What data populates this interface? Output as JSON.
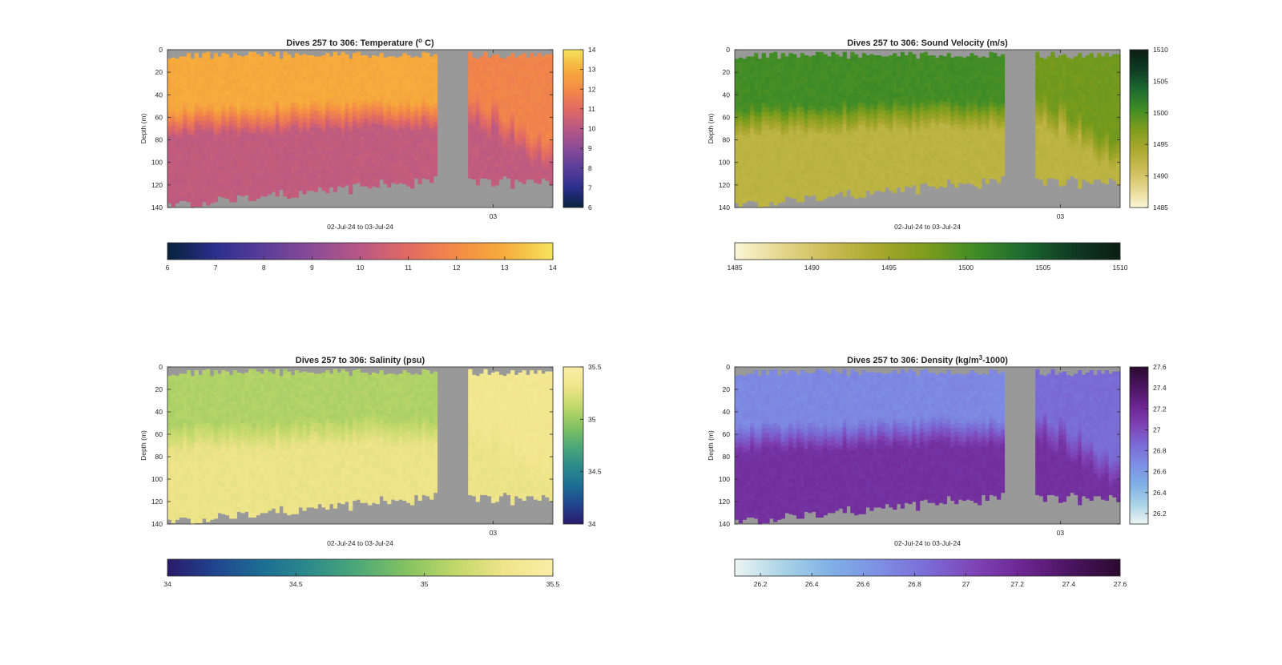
{
  "chart_data": [
    {
      "type": "heatmap",
      "id": "temperature",
      "title": "Dives 257 to 306: Temperature (",
      "title_sup": "o",
      "title_tail": " C)",
      "xlabel": "02-Jul-24 to 03-Jul-24",
      "ylabel": "Depth (m)",
      "x_tick_labels": [
        "03"
      ],
      "y_ticks": [
        0,
        20,
        40,
        60,
        80,
        100,
        120,
        140
      ],
      "ylim": [
        0,
        140
      ],
      "clim": [
        6,
        14
      ],
      "side_colorbar_ticks": [
        6,
        7,
        8,
        9,
        10,
        11,
        12,
        13,
        14
      ],
      "bottom_colorbar_ticks": [
        6,
        7,
        8,
        9,
        10,
        11,
        12,
        13,
        14
      ],
      "colormap": [
        "#07223d",
        "#2b2f8c",
        "#5a3d99",
        "#8a4b97",
        "#b95885",
        "#e26a62",
        "#f38b46",
        "#f7ad3c",
        "#f5e35c"
      ],
      "profile": {
        "surface": 12.9,
        "mixed_layer_depth_m": [
          44,
          30
        ],
        "deep": 10.2,
        "second_segment_surface": 11.8
      },
      "max_depth_m": [
        140,
        120
      ],
      "gap_columns": [
        70,
        77
      ]
    },
    {
      "type": "heatmap",
      "id": "sound_velocity",
      "title": "Dives 257 to 306: Sound Velocity (m/s)",
      "xlabel": "02-Jul-24 to 03-Jul-24",
      "ylabel": "Depth (m)",
      "x_tick_labels": [
        "03"
      ],
      "y_ticks": [
        0,
        20,
        40,
        60,
        80,
        100,
        120,
        140
      ],
      "ylim": [
        0,
        140
      ],
      "clim": [
        1485,
        1510
      ],
      "side_colorbar_ticks": [
        1485,
        1490,
        1495,
        1500,
        1505,
        1510
      ],
      "bottom_colorbar_ticks": [
        1485,
        1490,
        1495,
        1500,
        1505,
        1510
      ],
      "colormap": [
        "#fbf6d6",
        "#e4d58c",
        "#c9bb52",
        "#a7a72c",
        "#7c9c1c",
        "#3f8c26",
        "#1c6a30",
        "#0f3b22",
        "#0b1e12"
      ],
      "profile": {
        "surface": 1500.5,
        "mixed_layer_depth_m": [
          44,
          30
        ],
        "deep": 1492.5,
        "second_segment_surface": 1498.0
      },
      "max_depth_m": [
        140,
        120
      ],
      "gap_columns": [
        70,
        77
      ]
    },
    {
      "type": "heatmap",
      "id": "salinity",
      "title": "Dives 257 to 306: Salinity (psu)",
      "xlabel": "02-Jul-24 to 03-Jul-24",
      "ylabel": "Depth (m)",
      "x_tick_labels": [
        "03"
      ],
      "y_ticks": [
        0,
        20,
        40,
        60,
        80,
        100,
        120,
        140
      ],
      "ylim": [
        0,
        140
      ],
      "clim": [
        34,
        35.5
      ],
      "side_colorbar_ticks": [
        34,
        34.5,
        35,
        35.5
      ],
      "bottom_colorbar_ticks": [
        34,
        34.5,
        35,
        35.5
      ],
      "colormap": [
        "#2a1a6b",
        "#20458f",
        "#1c6f94",
        "#2d8c8a",
        "#4faa77",
        "#86c361",
        "#c2d86a",
        "#f0e48a",
        "#fbeea6"
      ],
      "profile": {
        "surface": 35.07,
        "mixed_layer_depth_m": [
          44,
          30
        ],
        "deep": 35.3,
        "second_segment_surface": 35.35
      },
      "max_depth_m": [
        140,
        120
      ],
      "gap_columns": [
        70,
        77
      ]
    },
    {
      "type": "heatmap",
      "id": "density",
      "title": "Dives 257 to 306: Density (kg/m",
      "title_sup": "3",
      "title_tail": "-1000)",
      "xlabel": "02-Jul-24 to 03-Jul-24",
      "ylabel": "Depth (m)",
      "x_tick_labels": [
        "03"
      ],
      "y_ticks": [
        0,
        20,
        40,
        60,
        80,
        100,
        120,
        140
      ],
      "ylim": [
        0,
        140
      ],
      "clim": [
        26.1,
        27.6
      ],
      "side_colorbar_ticks": [
        26.2,
        26.4,
        26.6,
        26.8,
        27,
        27.2,
        27.4,
        27.6
      ],
      "bottom_colorbar_ticks": [
        26.2,
        26.4,
        26.6,
        26.8,
        27,
        27.2,
        27.4,
        27.6
      ],
      "colormap": [
        "#eef5f4",
        "#a9d3e6",
        "#7fb0e6",
        "#7e8fe4",
        "#7a6cd6",
        "#7e43b6",
        "#6c2590",
        "#4a1460",
        "#2b0a2e"
      ],
      "profile": {
        "surface": 26.7,
        "mixed_layer_depth_m": [
          44,
          30
        ],
        "deep": 27.15,
        "second_segment_surface": 26.85
      },
      "max_depth_m": [
        140,
        120
      ],
      "gap_columns": [
        70,
        77
      ]
    }
  ]
}
